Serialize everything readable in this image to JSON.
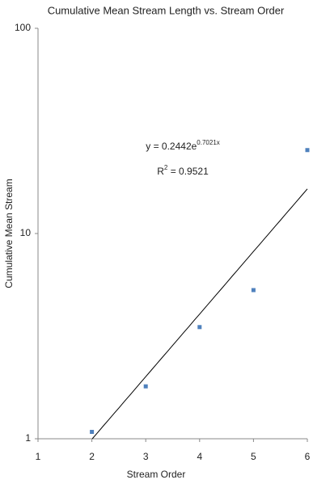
{
  "chart_data": {
    "type": "scatter",
    "title": "Cumulative Mean Stream Length vs. Stream Order",
    "x_label": "Stream Order",
    "y_label": "Cumulative Mean Stream",
    "x": [
      2,
      3,
      4,
      5,
      6
    ],
    "values": [
      1.08,
      1.8,
      3.5,
      5.3,
      25.5
    ],
    "color": "#4f81bd",
    "xlim": [
      1,
      6
    ],
    "xticks": [
      1,
      2,
      3,
      4,
      5,
      6
    ],
    "ylim": [
      1,
      100
    ],
    "yticks": [
      1,
      10,
      100
    ],
    "y_scale": "log",
    "grid": false,
    "trendline": {
      "type": "exponential",
      "a": 0.2442,
      "b": 0.7021,
      "color": "#000000",
      "equation": [
        "y = 0.2442e",
        "0.7021x"
      ],
      "r_squared": [
        "R",
        "2",
        " = 0.9521"
      ]
    }
  }
}
